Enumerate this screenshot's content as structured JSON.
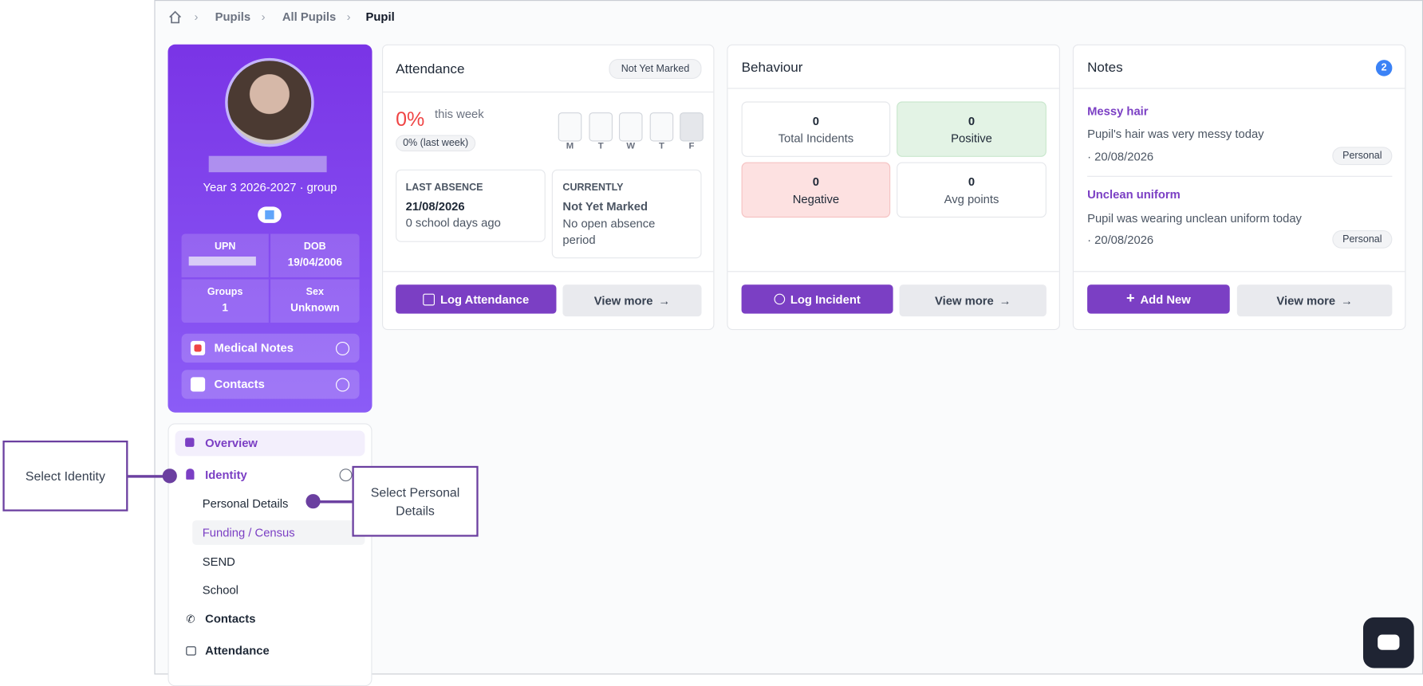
{
  "breadcrumb": [
    "Pupils",
    "All Pupils",
    "Pupil"
  ],
  "profile": {
    "group": "Year 3 2026-2027 · group",
    "upn_label": "UPN",
    "dob_label": "DOB",
    "dob": "19/04/2006",
    "groups_label": "Groups",
    "groups": "1",
    "sex_label": "Sex",
    "sex": "Unknown",
    "medical_notes": "Medical Notes",
    "contacts": "Contacts"
  },
  "attendance": {
    "title": "Attendance",
    "status": "Not Yet Marked",
    "percent": "0%",
    "period": "this week",
    "last_week": "0% (last week)",
    "days": [
      "M",
      "T",
      "W",
      "T",
      "F"
    ],
    "last_absence_label": "LAST ABSENCE",
    "last_absence_date": "21/08/2026",
    "last_absence_ago": "0 school days ago",
    "currently_label": "CURRENTLY",
    "currently_status": "Not Yet Marked",
    "currently_detail": "No open absence period",
    "log_button": "Log Attendance",
    "view_more": "View more"
  },
  "behaviour": {
    "title": "Behaviour",
    "stats": [
      {
        "value": 0,
        "label": "Total Incidents"
      },
      {
        "value": 0,
        "label": "Positive"
      },
      {
        "value": 0,
        "label": "Negative"
      },
      {
        "value": 0,
        "label": "Avg points"
      }
    ],
    "log_button": "Log Incident",
    "view_more": "View more"
  },
  "notes": {
    "title": "Notes",
    "count": 2,
    "items": [
      {
        "title": "Messy hair",
        "text": "Pupil's hair was very messy today",
        "date": "· 20/08/2026",
        "tag": "Personal"
      },
      {
        "title": "Unclean uniform",
        "text": "Pupil was wearing unclean uniform today",
        "date": "· 20/08/2026",
        "tag": "Personal"
      }
    ],
    "add_button": "Add New",
    "view_more": "View more"
  },
  "nav": {
    "items": [
      "Overview",
      "Identity"
    ],
    "identity_sub": [
      "Personal Details",
      "Funding / Census",
      "SEND",
      "School"
    ],
    "more": [
      "Contacts",
      "Attendance"
    ]
  },
  "callouts": [
    "Select Identity",
    "Select Personal Details"
  ]
}
